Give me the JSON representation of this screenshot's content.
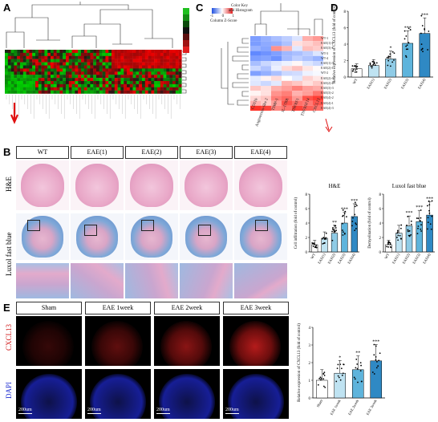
{
  "panels": {
    "A": "A",
    "B": "B",
    "C": "C",
    "D": "D",
    "E": "E"
  },
  "colors": {
    "heat_low": "#1a7f1a",
    "heat_high": "#e02020",
    "he_pink": "#e9a8c8",
    "lfb_blue": "#7fa8d8",
    "bar_light": "#bfe3f2",
    "bar_mid": "#5eb4dc",
    "bar_dark": "#2f89c4",
    "fluo_red": "#d42020",
    "fluo_blue": "#2030d0"
  },
  "panelC": {
    "color_key_title": "Color Key",
    "hist_title": "and Histogram",
    "zscore_label": "Column Z-Score",
    "zscore_ticks": [
      "-1",
      "0",
      "1"
    ],
    "columns": [
      "CD11b",
      "Angiotensin-like 2",
      "TIMP-1",
      "IL-17BR",
      "TNFRF1",
      "TNFRSF14",
      "CXCL13"
    ],
    "rows": [
      "WT-1",
      "EAE(1)-1",
      "EAE(3)-1",
      "WT-3",
      "WT-4",
      "EAE(1)-3",
      "EAE(2)-1",
      "WT-2",
      "EAE(2)-3",
      "EAE(2)-2",
      "EAE(3)-3",
      "EAE(3)-2",
      "EAE(4)-2",
      "EAE(4)-1",
      "EAE(4)-3"
    ]
  },
  "panelB": {
    "groups": [
      "WT",
      "EAE(1)",
      "EAE(2)",
      "EAE(3)",
      "EAE(4)"
    ],
    "row_labels": [
      "H&E",
      "Luxol fast blue"
    ]
  },
  "panelE": {
    "groups": [
      "Sham",
      "EAE 1week",
      "EAE 2week",
      "EAE 3week"
    ],
    "row_labels": [
      "CXCL13",
      "DAPI"
    ],
    "scale_bars": [
      "200um",
      "200um",
      "200um",
      "200um"
    ]
  },
  "chart_data": [
    {
      "id": "D",
      "type": "bar",
      "categories": [
        "WT",
        "EAE(1)",
        "EAE(2)",
        "EAE(3)",
        "EAE(4)"
      ],
      "values": [
        1.0,
        1.4,
        2.2,
        4.1,
        5.3
      ],
      "significance": [
        "",
        "",
        "*",
        "***",
        "***"
      ],
      "ylabel": "Relative expression of CXCL13 (fold of control)",
      "ylim": [
        0,
        8
      ],
      "yticks": [
        "0",
        "2",
        "4",
        "6",
        "8"
      ]
    },
    {
      "id": "B-HE",
      "type": "bar",
      "title": "H&E",
      "categories": [
        "WT",
        "EAE(1)",
        "EAE(2)",
        "EAE(3)",
        "EAE(4)"
      ],
      "values": [
        1.0,
        1.9,
        2.6,
        4.0,
        4.9
      ],
      "significance": [
        "",
        "",
        "**",
        "***",
        "***"
      ],
      "ylabel": "Cell infiltration (fold of control)",
      "ylim": [
        0,
        8
      ],
      "yticks": [
        "0",
        "2",
        "4",
        "6",
        "8"
      ]
    },
    {
      "id": "B-LFB",
      "type": "bar",
      "title": "Luxol fast blue",
      "categories": [
        "WT",
        "EAE(1)",
        "EAE(2)",
        "EAE(3)",
        "EAE(4)"
      ],
      "values": [
        1.0,
        2.6,
        3.6,
        4.2,
        5.1
      ],
      "significance": [
        "",
        "",
        "***",
        "***",
        "***"
      ],
      "ylabel": "Demyelination (fold of control)",
      "ylim": [
        0,
        8
      ],
      "yticks": [
        "0",
        "2",
        "4",
        "6",
        "8"
      ]
    },
    {
      "id": "E",
      "type": "bar",
      "categories": [
        "Sham",
        "EAE 1week",
        "EAE 2week",
        "EAE 3week"
      ],
      "values": [
        1.0,
        1.4,
        1.6,
        2.1
      ],
      "significance": [
        "",
        "*",
        "**",
        "***"
      ],
      "ylabel": "Relative expression of CXCL13 (fold of control)",
      "ylim": [
        0,
        4
      ],
      "yticks": [
        "0",
        "1",
        "2",
        "3",
        "4"
      ]
    }
  ]
}
